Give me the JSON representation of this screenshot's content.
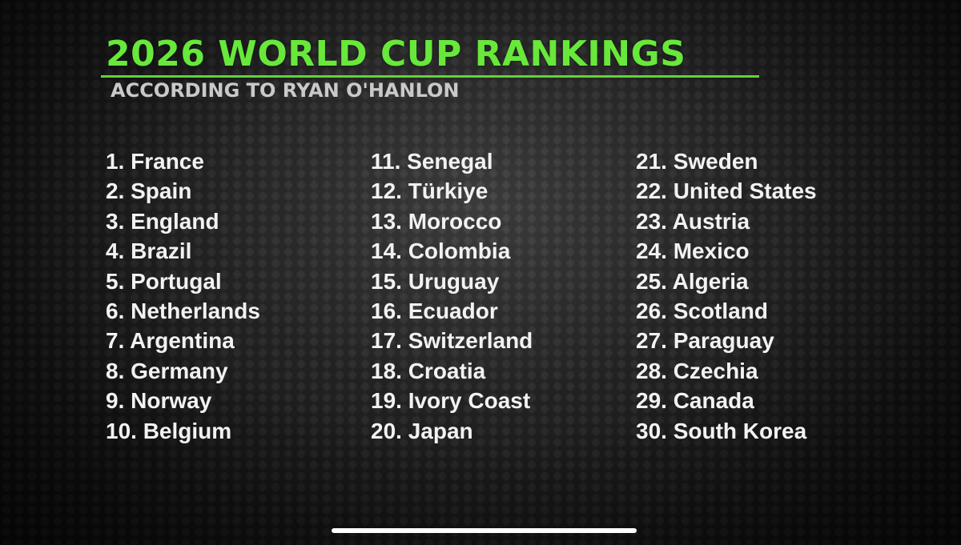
{
  "graphic": {
    "title": "2026 WORLD CUP RANKINGS",
    "subtitle": "ACCORDING TO RYAN O'HANLON",
    "accent_color": "#67e83a",
    "columns": [
      {
        "items": [
          "1. France",
          "2. Spain",
          "3. England",
          "4. Brazil",
          "5. Portugal",
          "6. Netherlands",
          "7. Argentina",
          "8. Germany",
          "9. Norway",
          "10. Belgium"
        ]
      },
      {
        "items": [
          "11. Senegal",
          "12. Türkiye",
          "13. Morocco",
          "14. Colombia",
          "15. Uruguay",
          "16. Ecuador",
          "17. Switzerland",
          "18. Croatia",
          "19. Ivory Coast",
          "20. Japan"
        ]
      },
      {
        "items": [
          "21. Sweden",
          "22. United States",
          "23. Austria",
          "24. Mexico",
          "25. Algeria",
          "26. Scotland",
          "27. Paraguay",
          "28. Czechia",
          "29. Canada",
          "30. South Korea"
        ]
      }
    ]
  }
}
